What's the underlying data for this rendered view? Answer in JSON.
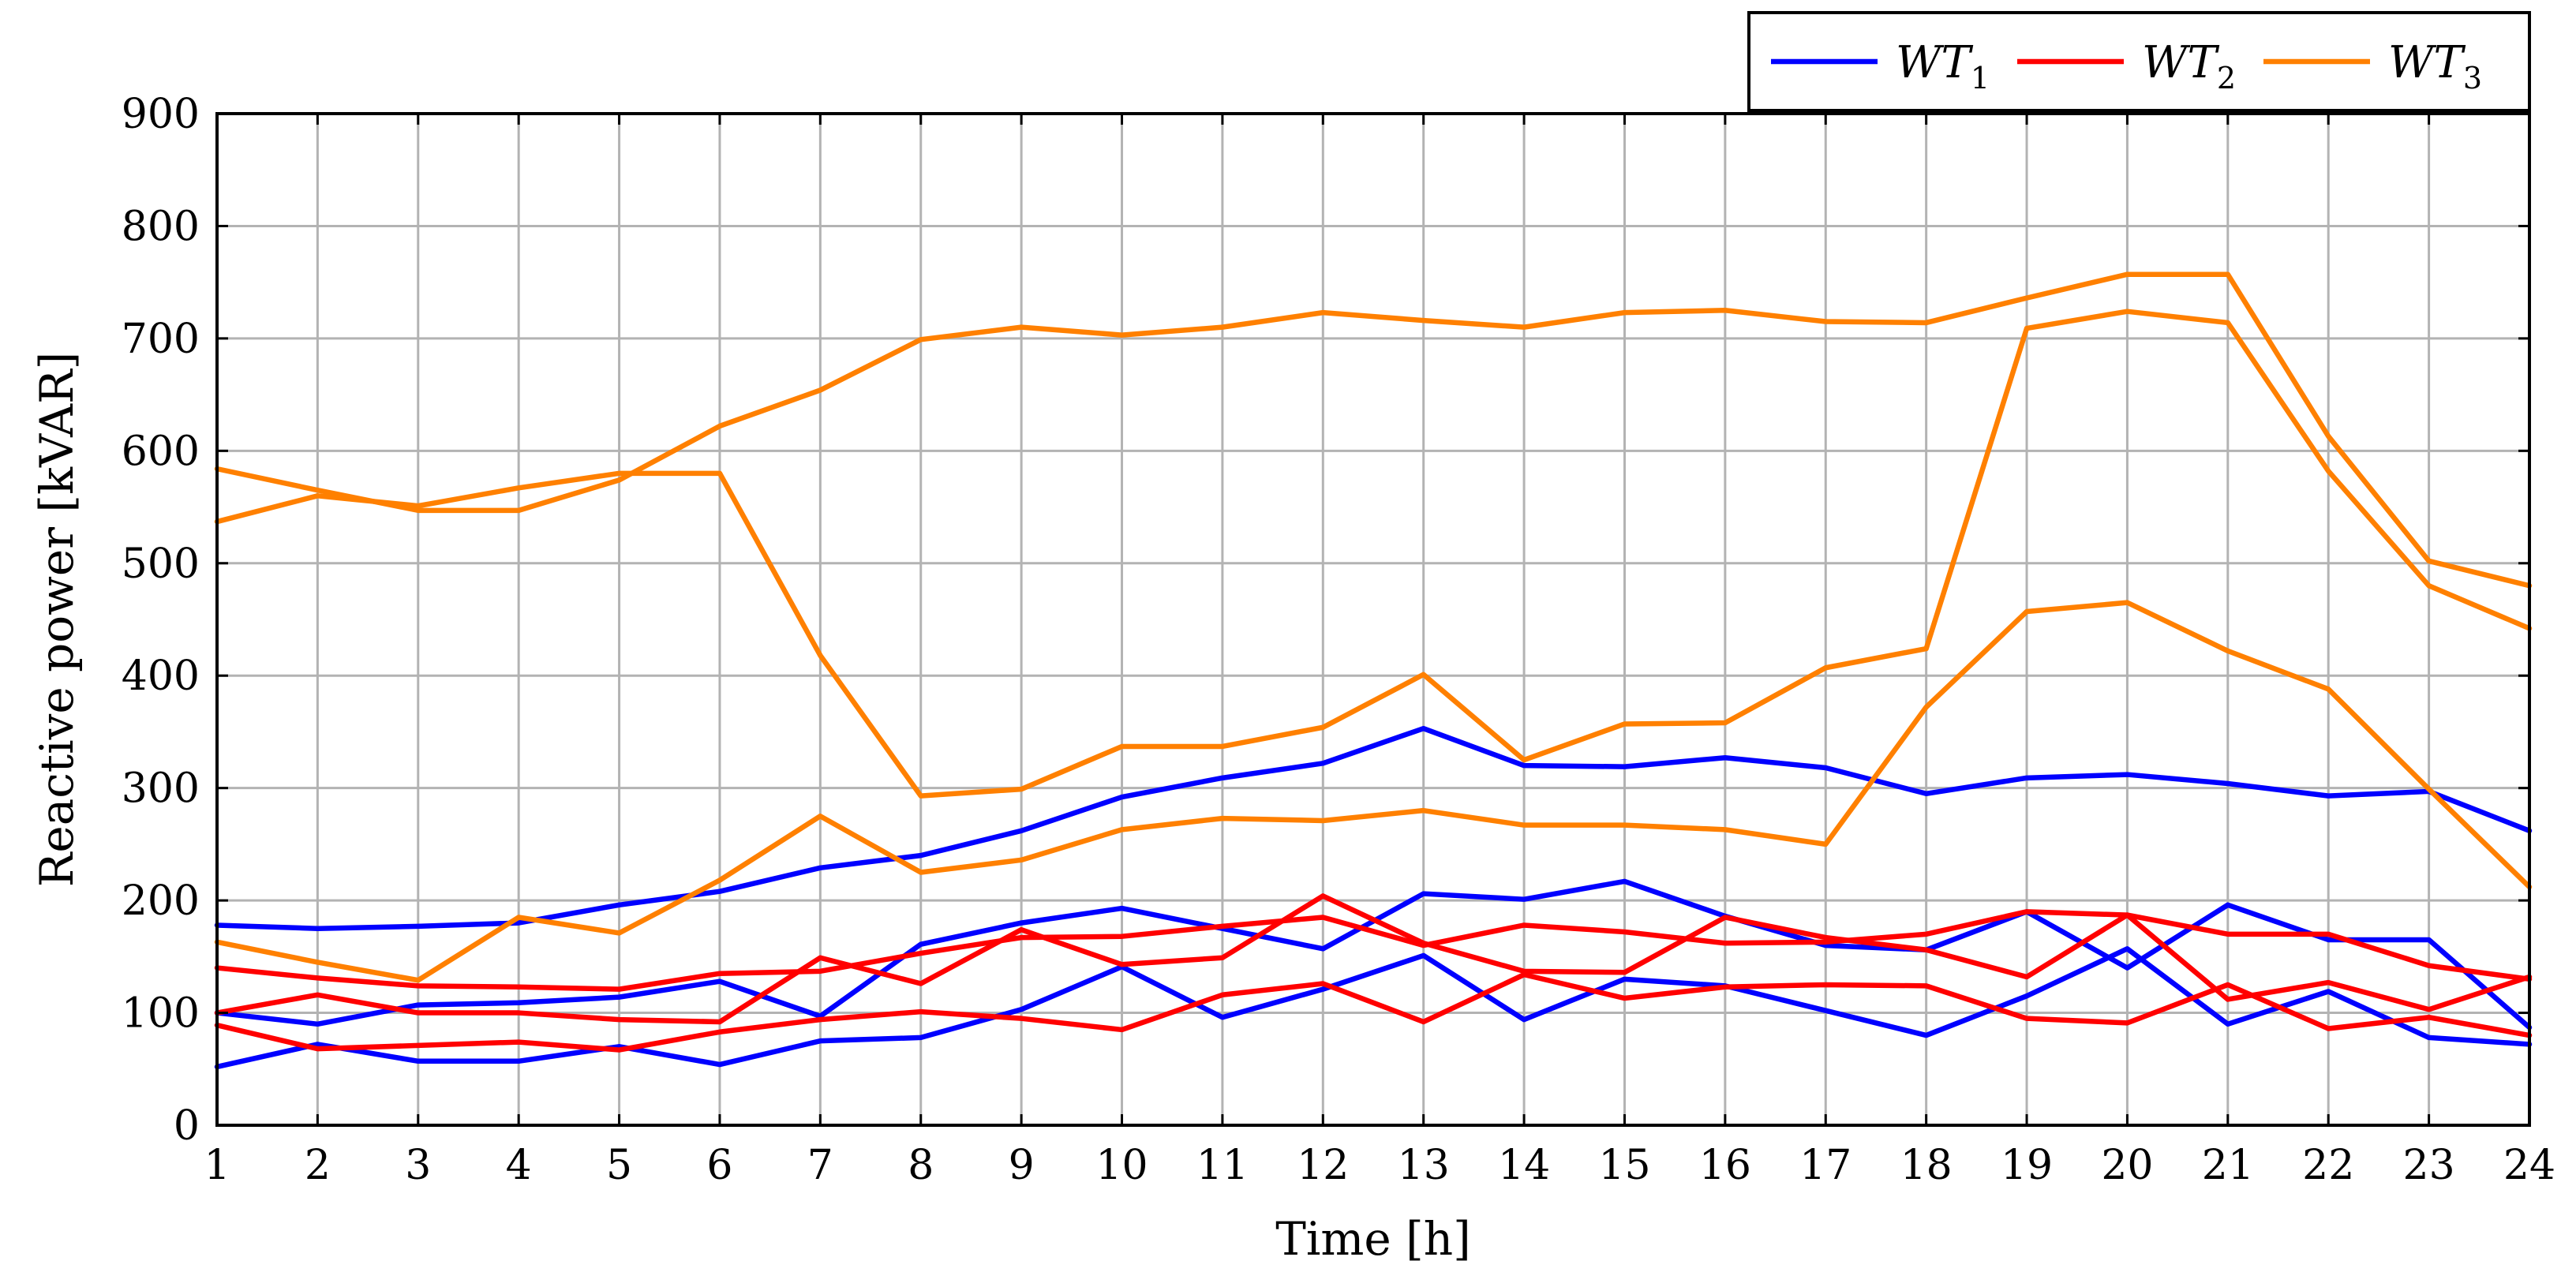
{
  "chart_data": {
    "type": "line",
    "title": "",
    "xlabel": "Time [h]",
    "ylabel": "Reactive power [kVAR]",
    "x": [
      1,
      2,
      3,
      4,
      5,
      6,
      7,
      8,
      9,
      10,
      11,
      12,
      13,
      14,
      15,
      16,
      17,
      18,
      19,
      20,
      21,
      22,
      23,
      24
    ],
    "xlim": [
      1,
      24
    ],
    "ylim": [
      0,
      900
    ],
    "yticks": [
      0,
      100,
      200,
      300,
      400,
      500,
      600,
      700,
      800,
      900
    ],
    "grid": true,
    "legend_position": "top-right, above plot",
    "colors": {
      "WT1": "#0000ff",
      "WT2": "#ff0000",
      "WT3": "#ff8000"
    },
    "legend": [
      {
        "base": "WT",
        "sub": "1",
        "color": "#0000ff"
      },
      {
        "base": "WT",
        "sub": "2",
        "color": "#ff0000"
      },
      {
        "base": "WT",
        "sub": "3",
        "color": "#ff8000"
      }
    ],
    "series": [
      {
        "group": "WT1",
        "color": "#0000ff",
        "values": [
          178,
          175,
          177,
          180,
          196,
          208,
          229,
          240,
          262,
          292,
          309,
          322,
          353,
          320,
          319,
          327,
          318,
          295,
          309,
          312,
          304,
          293,
          297,
          262
        ]
      },
      {
        "group": "WT1",
        "color": "#0000ff",
        "values": [
          100,
          90,
          107,
          109,
          114,
          128,
          97,
          161,
          180,
          193,
          175,
          157,
          206,
          201,
          217,
          186,
          160,
          156,
          190,
          140,
          196,
          165,
          165,
          87
        ]
      },
      {
        "group": "WT1",
        "color": "#0000ff",
        "values": [
          52,
          72,
          57,
          57,
          70,
          54,
          75,
          78,
          103,
          141,
          96,
          121,
          151,
          94,
          130,
          124,
          102,
          80,
          115,
          157,
          90,
          119,
          78,
          72
        ]
      },
      {
        "group": "WT2",
        "color": "#ff0000",
        "values": [
          140,
          131,
          124,
          123,
          121,
          135,
          137,
          153,
          167,
          168,
          177,
          185,
          160,
          178,
          172,
          162,
          163,
          170,
          190,
          187,
          170,
          170,
          142,
          130
        ]
      },
      {
        "group": "WT2",
        "color": "#ff0000",
        "values": [
          100,
          116,
          100,
          100,
          94,
          92,
          149,
          126,
          174,
          143,
          149,
          204,
          162,
          137,
          136,
          185,
          167,
          156,
          132,
          187,
          112,
          127,
          103,
          132
        ]
      },
      {
        "group": "WT2",
        "color": "#ff0000",
        "values": [
          89,
          68,
          71,
          74,
          67,
          83,
          94,
          101,
          95,
          85,
          116,
          126,
          92,
          134,
          113,
          123,
          125,
          124,
          95,
          91,
          125,
          86,
          96,
          80
        ]
      },
      {
        "group": "WT3",
        "color": "#ff8000",
        "values": [
          537,
          560,
          551,
          567,
          580,
          580,
          418,
          293,
          299,
          337,
          337,
          354,
          401,
          325,
          357,
          358,
          407,
          424,
          709,
          724,
          714,
          582,
          480,
          442
        ]
      },
      {
        "group": "WT3",
        "color": "#ff8000",
        "values": [
          584,
          565,
          547,
          547,
          574,
          622,
          654,
          699,
          710,
          703,
          710,
          723,
          716,
          710,
          723,
          725,
          715,
          714,
          736,
          757,
          757,
          613,
          502,
          480
        ]
      },
      {
        "group": "WT3",
        "color": "#ff8000",
        "values": [
          163,
          145,
          129,
          185,
          171,
          218,
          275,
          225,
          236,
          263,
          273,
          271,
          280,
          267,
          267,
          263,
          250,
          372,
          457,
          465,
          422,
          388,
          299,
          212
        ]
      }
    ]
  }
}
